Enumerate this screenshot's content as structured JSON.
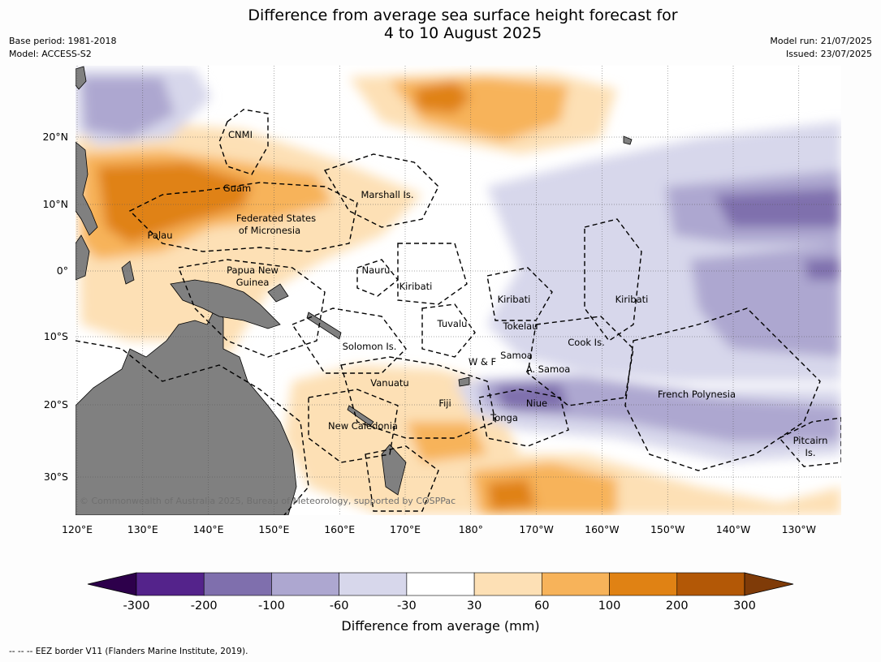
{
  "title_line1": "Difference from average sea surface height forecast for",
  "title_line2": "4 to 10 August 2025",
  "meta_left": [
    "Base period: 1981-2018",
    "Model: ACCESS-S2"
  ],
  "meta_right": [
    "Model run: 21/07/2025",
    "Issued: 23/07/2025"
  ],
  "lon_ticks": [
    "120°E",
    "130°E",
    "140°E",
    "150°E",
    "160°E",
    "170°E",
    "180°",
    "170°W",
    "160°W",
    "150°W",
    "140°W",
    "130°W"
  ],
  "lat_ticks": [
    "20°N",
    "10°N",
    "0°",
    "10°S",
    "20°S",
    "30°S"
  ],
  "copyright": "© Commonwealth of Australia 2025, Bureau of Meteorology, supported by COSPPac",
  "place_labels": [
    {
      "text": "CNMI"
    },
    {
      "text": "Guam"
    },
    {
      "text": "Marshall Is."
    },
    {
      "text": "Federated States"
    },
    {
      "text": "of Micronesia"
    },
    {
      "text": "Palau"
    },
    {
      "text": "Papua New"
    },
    {
      "text": "Guinea"
    },
    {
      "text": "Nauru"
    },
    {
      "text": "Kiribati"
    },
    {
      "text": "Kiribati"
    },
    {
      "text": "Kiribati"
    },
    {
      "text": "Tuvalu"
    },
    {
      "text": "Tokelau"
    },
    {
      "text": "Cook Is."
    },
    {
      "text": "Solomon Is."
    },
    {
      "text": "W & F"
    },
    {
      "text": "Samoa"
    },
    {
      "text": "A. Samoa"
    },
    {
      "text": "Vanuatu"
    },
    {
      "text": "Fiji"
    },
    {
      "text": "Niue"
    },
    {
      "text": "Tonga"
    },
    {
      "text": "French Polynesia"
    },
    {
      "text": "New Caledonia"
    },
    {
      "text": "Pitcairn"
    },
    {
      "text": "Is."
    }
  ],
  "colorbar": {
    "ticks": [
      "-300",
      "-200",
      "-100",
      "-60",
      "-30",
      "30",
      "60",
      "100",
      "200",
      "300"
    ],
    "colors": [
      "#54238b",
      "#7f6fad",
      "#ada7d0",
      "#d7d7eb",
      "#ffffff",
      "#fde0b5",
      "#f7b35a",
      "#e08214",
      "#b35806"
    ],
    "extend_low_color": "#2d004b",
    "extend_high_color": "#7f3b08",
    "label": "Difference from average (mm)"
  },
  "colors": {
    "land": "#808080",
    "ocean": "#ffffff"
  },
  "footer": "--  --  -- EEZ border V11 (Flanders Marine Institute, 2019)."
}
